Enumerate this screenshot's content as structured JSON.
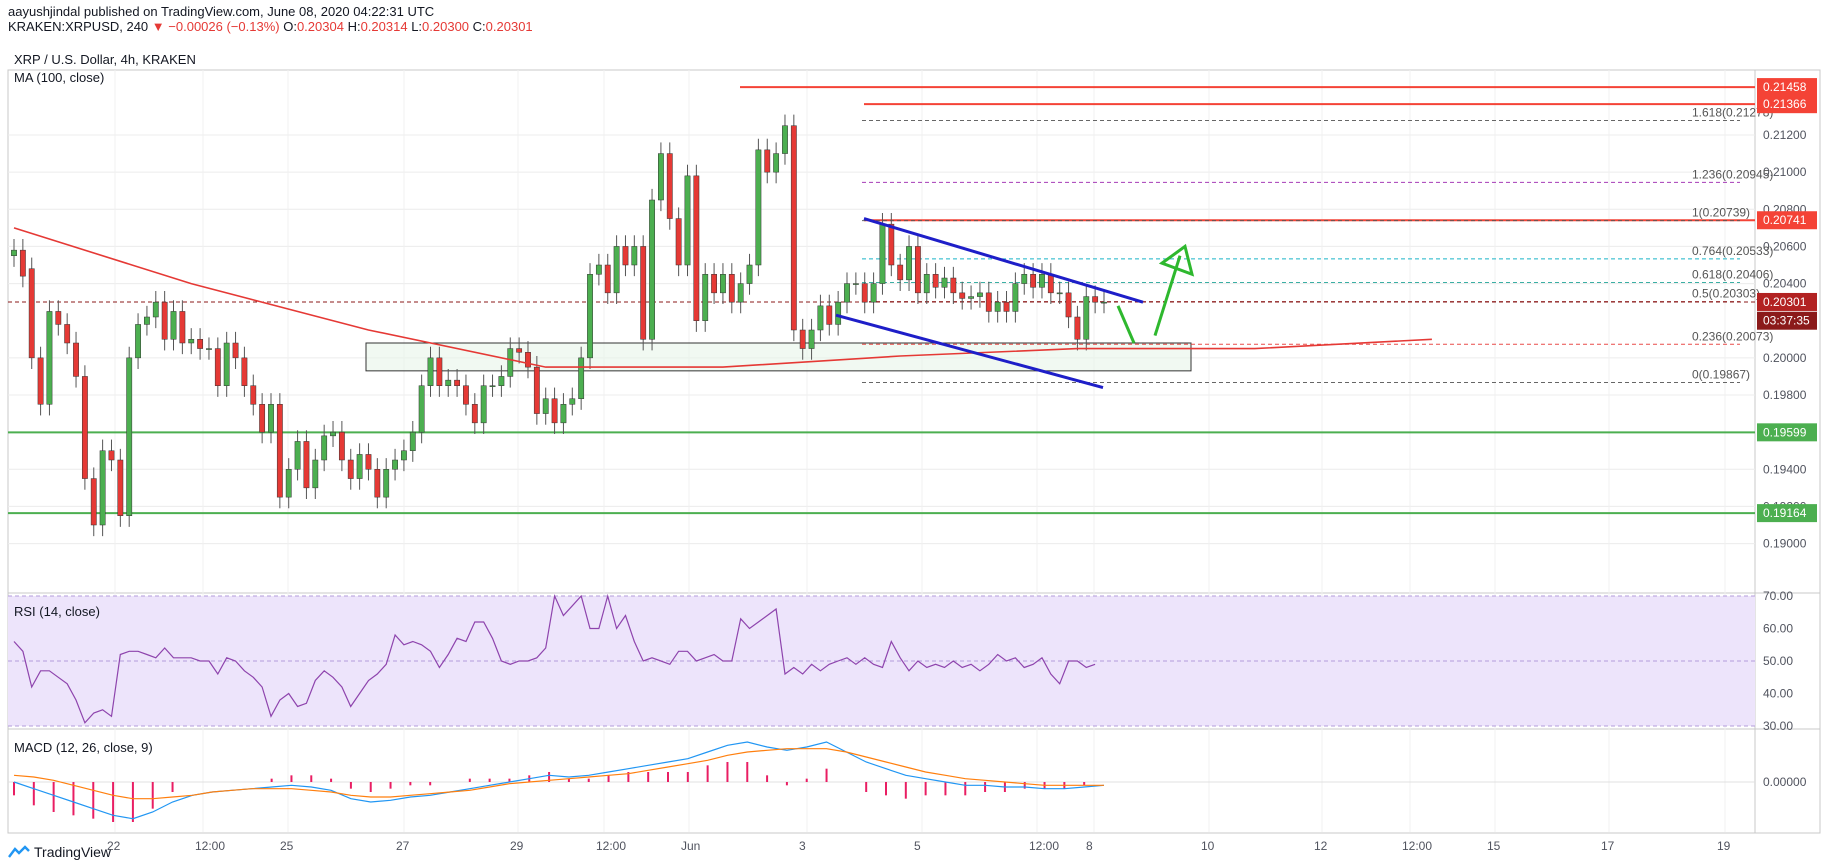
{
  "header": {
    "author": "aayushjindal",
    "published_text": "published on TradingView.com, June 08, 2020 04:22:31 UTC",
    "ticker": "KRAKEN:XRPUSD, 240",
    "change": "▼ −0.00026 (−0.13%)",
    "o_label": "O:",
    "o_value": "0.20304",
    "h_label": "H:",
    "h_value": "0.20314",
    "l_label": "L:",
    "l_value": "0.20300",
    "c_label": "C:",
    "c_value": "0.20301"
  },
  "main": {
    "symbol": "XRP / U.S. Dollar, 4h, KRAKEN",
    "ma_label": "MA (100, close)"
  },
  "rsi": {
    "label": "RSI (14, close)"
  },
  "macd": {
    "label": "MACD (12, 26, close, 9)"
  },
  "footer": {
    "brand": "TradingView"
  },
  "colors": {
    "up": "#4caf50",
    "down": "#e53935",
    "ma": "#e53935",
    "rsi": "#8e44ad",
    "macd": "#2196f3",
    "signal": "#ff7f0e",
    "hist": "#e91e63",
    "support": "#4caf50",
    "resistance": "#f44336",
    "channel": "#1e1ec8",
    "arrow": "#2eb82e",
    "fib": "#2962ff"
  },
  "chart_data": [
    {
      "type": "candlestick",
      "title": "XRP / U.S. Dollar, 4h, KRAKEN",
      "ylim": [
        0.1875,
        0.2155
      ],
      "x_ticks": [
        "22",
        "12:00",
        "25",
        "27",
        "29",
        "12:00",
        "Jun",
        "3",
        "5",
        "12:00",
        "8",
        "10",
        "12",
        "12:00",
        "15",
        "17",
        "19"
      ],
      "y_ticks": [
        "0.21200",
        "0.21000",
        "0.20800",
        "0.20600",
        "0.20400",
        "0.20000",
        "0.19800",
        "0.19400",
        "0.19200",
        "0.19000"
      ],
      "price_labels": [
        {
          "value": 0.21458,
          "text": "0.21458",
          "kind": "resistance"
        },
        {
          "value": 0.21366,
          "text": "0.21366",
          "kind": "resistance"
        },
        {
          "value": 0.20741,
          "text": "0.20741",
          "kind": "resistance"
        },
        {
          "value": 0.20301,
          "text": "0.20301",
          "kind": "last"
        },
        {
          "value": 0.202,
          "text": "03:37:35",
          "kind": "timer"
        },
        {
          "value": 0.19599,
          "text": "0.19599",
          "kind": "support"
        },
        {
          "value": 0.19164,
          "text": "0.19164",
          "kind": "support"
        }
      ],
      "fib_levels": [
        {
          "ratio": "1.618",
          "value": 0.21278
        },
        {
          "ratio": "1.236",
          "value": 0.20945
        },
        {
          "ratio": "1",
          "value": 0.20739
        },
        {
          "ratio": "0.764",
          "value": 0.20533
        },
        {
          "ratio": "0.618",
          "value": 0.20406
        },
        {
          "ratio": "0.5",
          "value": 0.20303
        },
        {
          "ratio": "0.236",
          "value": 0.20073
        },
        {
          "ratio": "0",
          "value": 0.19867
        }
      ],
      "candles": [
        [
          0.2055,
          0.2058
        ],
        [
          0.2058,
          0.2044
        ],
        [
          0.2048,
          0.2
        ],
        [
          0.2,
          0.1975
        ],
        [
          0.1975,
          0.2025
        ],
        [
          0.2025,
          0.2018
        ],
        [
          0.2018,
          0.2008
        ],
        [
          0.2008,
          0.199
        ],
        [
          0.199,
          0.1935
        ],
        [
          0.1935,
          0.191
        ],
        [
          0.191,
          0.195
        ],
        [
          0.195,
          0.1945
        ],
        [
          0.1945,
          0.1915
        ],
        [
          0.1915,
          0.2
        ],
        [
          0.2,
          0.2018
        ],
        [
          0.2018,
          0.2022
        ],
        [
          0.2022,
          0.203
        ],
        [
          0.203,
          0.201
        ],
        [
          0.201,
          0.2025
        ],
        [
          0.2025,
          0.2008
        ],
        [
          0.2008,
          0.201
        ],
        [
          0.201,
          0.2005
        ],
        [
          0.2005,
          0.2005
        ],
        [
          0.2005,
          0.1985
        ],
        [
          0.1985,
          0.2008
        ],
        [
          0.2008,
          0.2
        ],
        [
          0.2,
          0.1985
        ],
        [
          0.1985,
          0.1975
        ],
        [
          0.1975,
          0.196
        ],
        [
          0.196,
          0.1975
        ],
        [
          0.1975,
          0.1925
        ],
        [
          0.1925,
          0.194
        ],
        [
          0.194,
          0.1955
        ],
        [
          0.1955,
          0.193
        ],
        [
          0.193,
          0.1945
        ],
        [
          0.1945,
          0.1958
        ],
        [
          0.1958,
          0.196
        ],
        [
          0.196,
          0.1945
        ],
        [
          0.1945,
          0.1935
        ],
        [
          0.1935,
          0.1948
        ],
        [
          0.1948,
          0.194
        ],
        [
          0.194,
          0.1925
        ],
        [
          0.1925,
          0.194
        ],
        [
          0.194,
          0.1945
        ],
        [
          0.1945,
          0.195
        ],
        [
          0.195,
          0.196
        ],
        [
          0.196,
          0.1985
        ],
        [
          0.1985,
          0.2
        ],
        [
          0.2,
          0.1985
        ],
        [
          0.1985,
          0.1988
        ],
        [
          0.1988,
          0.1985
        ],
        [
          0.1985,
          0.1975
        ],
        [
          0.1975,
          0.1965
        ],
        [
          0.1965,
          0.1985
        ],
        [
          0.1985,
          0.1985
        ],
        [
          0.1985,
          0.199
        ],
        [
          0.199,
          0.2005
        ],
        [
          0.2005,
          0.2003
        ],
        [
          0.2003,
          0.1995
        ],
        [
          0.1995,
          0.197
        ],
        [
          0.197,
          0.1978
        ],
        [
          0.1978,
          0.1965
        ],
        [
          0.1965,
          0.1975
        ],
        [
          0.1975,
          0.1978
        ],
        [
          0.1978,
          0.2
        ],
        [
          0.2,
          0.2045
        ],
        [
          0.2045,
          0.205
        ],
        [
          0.205,
          0.2035
        ],
        [
          0.2035,
          0.206
        ],
        [
          0.206,
          0.205
        ],
        [
          0.205,
          0.206
        ],
        [
          0.206,
          0.201
        ],
        [
          0.201,
          0.2085
        ],
        [
          0.2085,
          0.211
        ],
        [
          0.211,
          0.2075
        ],
        [
          0.2075,
          0.205
        ],
        [
          0.205,
          0.2098
        ],
        [
          0.2098,
          0.202
        ],
        [
          0.202,
          0.2045
        ],
        [
          0.2045,
          0.2035
        ],
        [
          0.2035,
          0.2045
        ],
        [
          0.2045,
          0.203
        ],
        [
          0.203,
          0.204
        ],
        [
          0.204,
          0.205
        ],
        [
          0.205,
          0.2112
        ],
        [
          0.2112,
          0.21
        ],
        [
          0.21,
          0.211
        ],
        [
          0.211,
          0.2125
        ],
        [
          0.2125,
          0.2015
        ],
        [
          0.2015,
          0.2005
        ],
        [
          0.2005,
          0.2015
        ],
        [
          0.2015,
          0.2028
        ],
        [
          0.2028,
          0.2018
        ],
        [
          0.2018,
          0.203
        ],
        [
          0.203,
          0.204
        ],
        [
          0.204,
          0.204
        ],
        [
          0.204,
          0.203
        ],
        [
          0.203,
          0.204
        ],
        [
          0.204,
          0.2072
        ],
        [
          0.2072,
          0.205
        ],
        [
          0.205,
          0.2042
        ],
        [
          0.2042,
          0.206
        ],
        [
          0.206,
          0.2035
        ],
        [
          0.2035,
          0.2045
        ],
        [
          0.2045,
          0.2038
        ],
        [
          0.2038,
          0.2043
        ],
        [
          0.2043,
          0.2035
        ],
        [
          0.2035,
          0.2032
        ],
        [
          0.2032,
          0.2033
        ],
        [
          0.2033,
          0.2035
        ],
        [
          0.2035,
          0.2025
        ],
        [
          0.2025,
          0.203
        ],
        [
          0.203,
          0.2025
        ],
        [
          0.2025,
          0.204
        ],
        [
          0.204,
          0.2045
        ],
        [
          0.2045,
          0.2038
        ],
        [
          0.2038,
          0.2045
        ],
        [
          0.2045,
          0.2035
        ],
        [
          0.2035,
          0.2035
        ],
        [
          0.2035,
          0.2022
        ],
        [
          0.2022,
          0.201
        ],
        [
          0.201,
          0.2033
        ],
        [
          0.2033,
          0.203
        ],
        [
          0.203,
          0.203
        ]
      ],
      "ma100": [
        [
          0,
          0.207
        ],
        [
          20,
          0.204
        ],
        [
          40,
          0.2015
        ],
        [
          60,
          0.1995
        ],
        [
          80,
          0.1995
        ],
        [
          100,
          0.2001
        ],
        [
          120,
          0.2005
        ],
        [
          140,
          0.2005
        ],
        [
          160,
          0.201
        ]
      ]
    },
    {
      "type": "line",
      "title": "RSI (14, close)",
      "ylim": [
        30,
        70
      ],
      "y_ticks": [
        "70.00",
        "60.00",
        "50.00",
        "40.00",
        "30.00"
      ],
      "values": [
        56,
        53,
        42,
        47,
        47,
        45,
        43,
        38,
        31,
        34,
        35,
        33,
        52,
        53,
        53,
        52,
        51,
        54,
        51,
        51,
        51,
        50,
        50,
        46,
        51,
        50,
        47,
        45,
        42,
        33,
        38,
        40,
        36,
        37,
        44,
        47,
        45,
        42,
        36,
        40,
        44,
        46,
        49,
        58,
        55,
        56,
        55,
        53,
        48,
        52,
        57,
        56,
        62,
        62,
        57,
        50,
        49,
        50,
        50,
        51,
        54,
        70,
        64,
        67,
        70,
        60,
        60,
        70,
        60,
        64,
        56,
        50,
        51,
        50,
        49,
        53,
        53,
        50,
        51,
        52,
        50,
        50,
        63,
        60,
        62,
        64,
        66,
        46,
        48,
        46,
        49,
        47,
        49,
        50,
        51,
        49,
        51,
        49,
        48,
        56,
        51,
        47,
        50,
        48,
        49,
        48,
        50,
        48,
        49,
        47,
        49,
        52,
        50,
        51,
        48,
        49,
        51,
        46,
        43,
        50,
        50,
        48,
        49
      ]
    },
    {
      "type": "line",
      "title": "MACD (12, 26, close, 9)",
      "y_ticks": [
        "0.00000"
      ],
      "ylim": [
        -0.003,
        0.003
      ],
      "series": [
        {
          "name": "MACD",
          "values": [
            0.0,
            -0.0004,
            -0.0008,
            -0.0012,
            -0.0016,
            -0.002,
            -0.0022,
            -0.0018,
            -0.0012,
            -0.0008,
            -0.0006,
            -0.0005,
            -0.0004,
            -0.0003,
            -0.0002,
            -0.0003,
            -0.0005,
            -0.001,
            -0.0012,
            -0.0011,
            -0.0009,
            -0.0008,
            -0.0006,
            -0.0004,
            -0.0002,
            0.0,
            0.0002,
            0.0004,
            0.0003,
            0.0004,
            0.0006,
            0.0008,
            0.001,
            0.0012,
            0.0014,
            0.0018,
            0.0022,
            0.0024,
            0.0021,
            0.0019,
            0.0021,
            0.0024,
            0.0018,
            0.0012,
            0.0008,
            0.0004,
            0.0002,
            0.0,
            -0.0002,
            -0.0002,
            -0.0003,
            -0.0003,
            -0.0004,
            -0.0004,
            -0.0003,
            -0.0002
          ]
        },
        {
          "name": "Signal",
          "values": [
            0.0004,
            0.0003,
            0.0001,
            -0.0002,
            -0.0005,
            -0.0008,
            -0.001,
            -0.001,
            -0.0009,
            -0.0008,
            -0.0006,
            -0.0005,
            -0.0004,
            -0.0004,
            -0.0004,
            -0.0005,
            -0.0006,
            -0.0008,
            -0.0009,
            -0.0009,
            -0.0008,
            -0.0007,
            -0.0006,
            -0.0005,
            -0.0003,
            -0.0001,
            0.0,
            0.0001,
            0.0002,
            0.0003,
            0.0004,
            0.0005,
            0.0007,
            0.0009,
            0.0011,
            0.0013,
            0.0016,
            0.0018,
            0.0019,
            0.002,
            0.002,
            0.002,
            0.0018,
            0.0015,
            0.0012,
            0.0009,
            0.0006,
            0.0004,
            0.0002,
            0.0001,
            0.0,
            -0.0001,
            -0.0002,
            -0.0002,
            -0.0002,
            -0.0002
          ]
        }
      ]
    }
  ]
}
